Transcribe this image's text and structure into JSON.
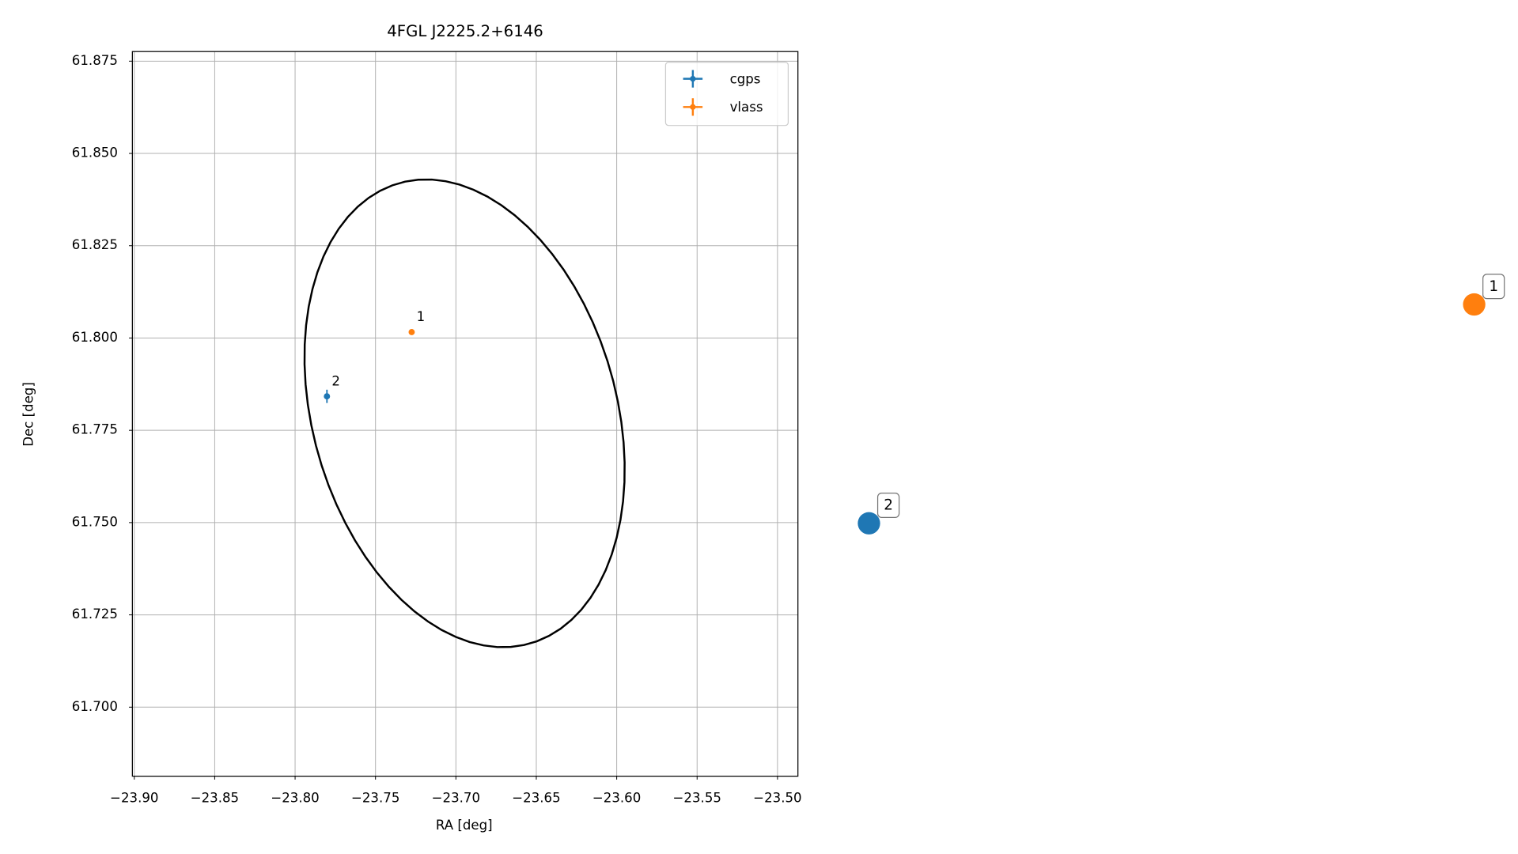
{
  "chart_data": {
    "type": "scatter",
    "title": "4FGL J2225.2+6146",
    "xlabel": "RA [deg]",
    "ylabel": "Dec [deg]",
    "xlim": [
      -23.9012,
      -23.4873
    ],
    "ylim": [
      61.6813,
      61.8776
    ],
    "xticks": [
      {
        "value": -23.9,
        "label": "−23.90"
      },
      {
        "value": -23.85,
        "label": "−23.85"
      },
      {
        "value": -23.8,
        "label": "−23.80"
      },
      {
        "value": -23.75,
        "label": "−23.75"
      },
      {
        "value": -23.7,
        "label": "−23.70"
      },
      {
        "value": -23.65,
        "label": "−23.65"
      },
      {
        "value": -23.6,
        "label": "−23.60"
      },
      {
        "value": -23.55,
        "label": "−23.55"
      },
      {
        "value": -23.5,
        "label": "−23.50"
      }
    ],
    "yticks": [
      {
        "value": 61.7,
        "label": "61.700"
      },
      61.725,
      {
        "value": 61.75,
        "label": "61.750"
      },
      61.775,
      {
        "value": 61.8,
        "label": "61.800"
      },
      61.825,
      {
        "value": 61.85,
        "label": "61.850"
      },
      61.875
    ],
    "grid": true,
    "legend": "upper right",
    "series": [
      {
        "name": "cgps",
        "color": "#1f77b4",
        "x": [
          -23.7802
        ],
        "y": [
          61.7842
        ],
        "xerr": [
          0.0006
        ],
        "yerr": [
          0.0018
        ],
        "labels": [
          "2"
        ]
      },
      {
        "name": "vlass",
        "color": "#ff7f0e",
        "x": [
          -23.7275
        ],
        "y": [
          61.8016
        ],
        "xerr": [
          0.0003
        ],
        "yerr": [
          0.0003
        ],
        "labels": [
          "1"
        ]
      }
    ],
    "ellipse": {
      "center": [
        -23.6946,
        61.7796
      ],
      "semi_major": 0.1014,
      "semi_minor": 0.0604,
      "angle": -13.6,
      "color": "#000000"
    }
  }
}
